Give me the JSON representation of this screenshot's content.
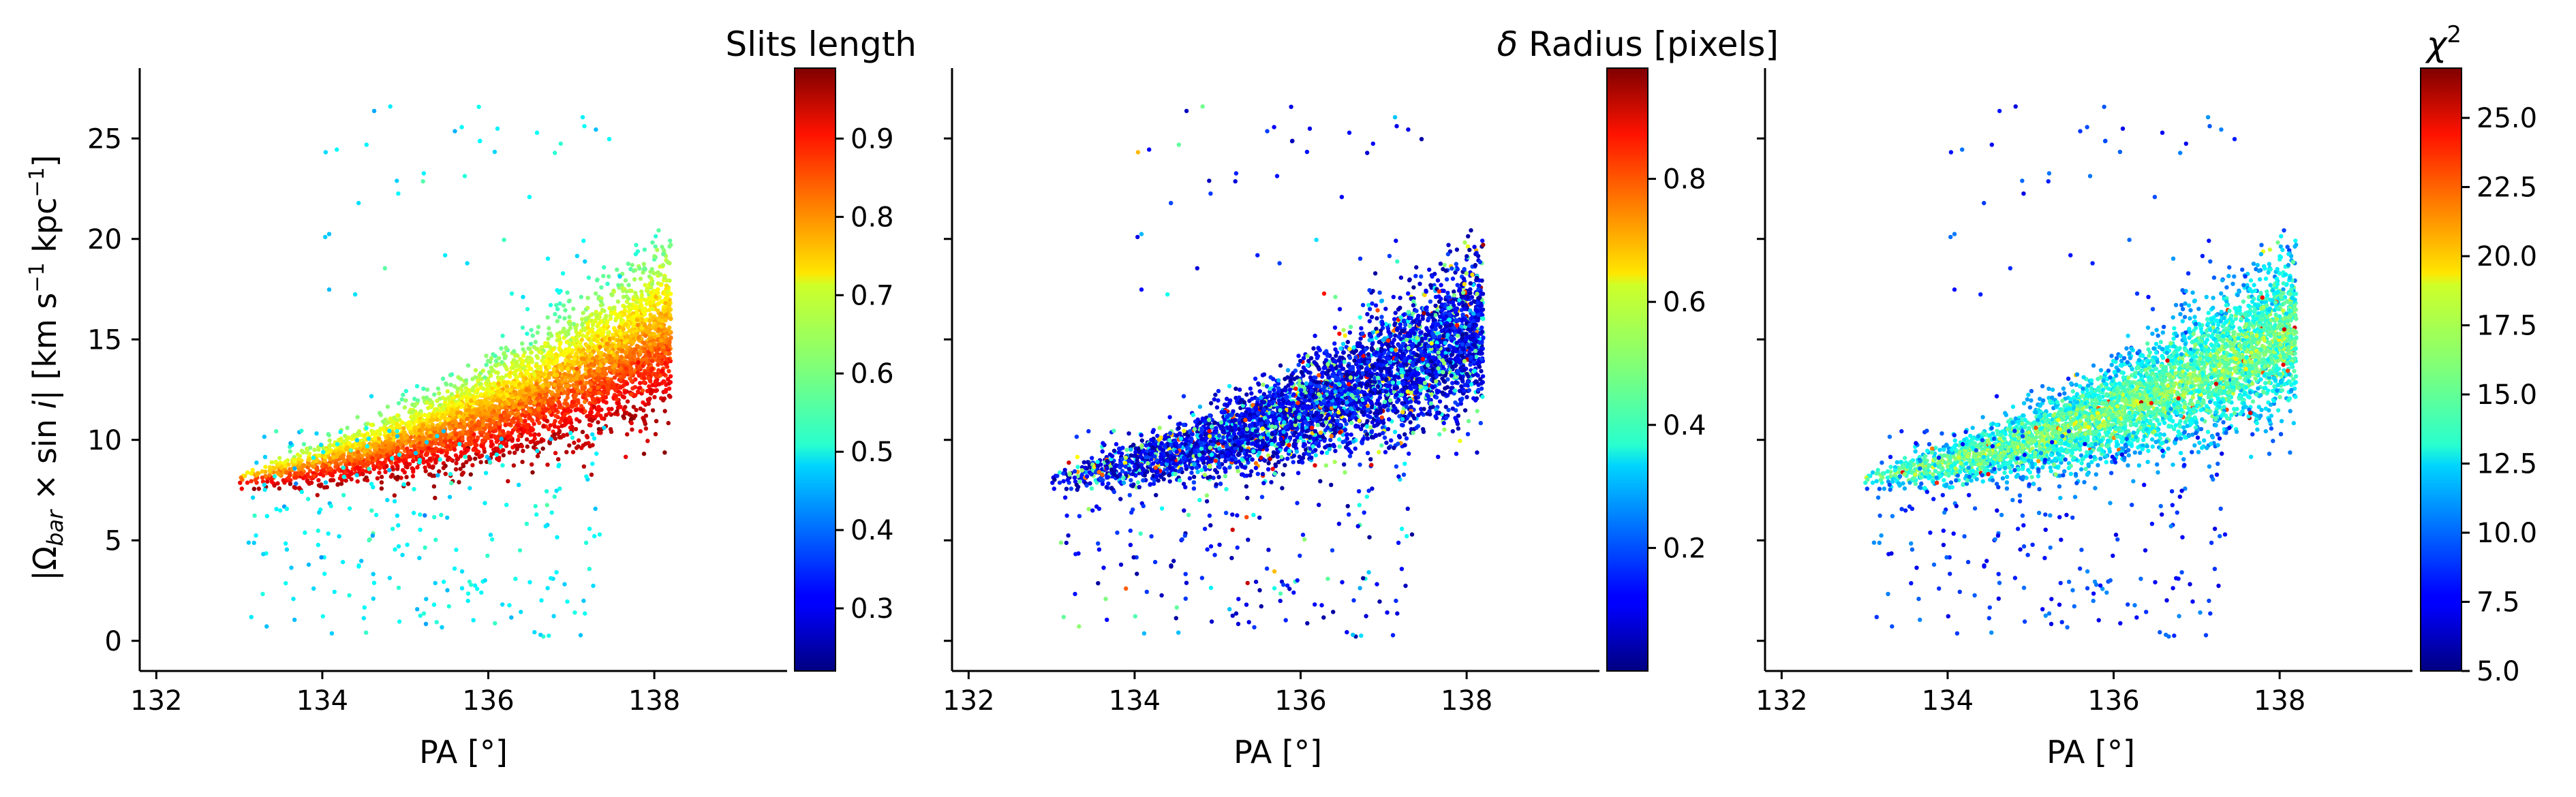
{
  "chart_data": [
    {
      "type": "scatter",
      "panel": 1,
      "xlabel": "PA [°]",
      "ylabel": "|Ω_bar × sin i|   [km s⁻¹ kpc⁻¹]",
      "ylabel_parts": {
        "a": "|Ω",
        "b": "bar",
        "c": " × sin ",
        "d": "i",
        "e": "|   [km s",
        "f": "−1",
        "g": " kpc",
        "h": "−1",
        "i": "]"
      },
      "xlim": [
        131.8,
        139.6
      ],
      "ylim": [
        -1.5,
        28.5
      ],
      "xticks": [
        {
          "v": 132,
          "label": "132"
        },
        {
          "v": 134,
          "label": "134"
        },
        {
          "v": 136,
          "label": "136"
        },
        {
          "v": 138,
          "label": "138"
        }
      ],
      "yticks": [
        {
          "v": 0,
          "label": "0"
        },
        {
          "v": 5,
          "label": "5"
        },
        {
          "v": 10,
          "label": "10"
        },
        {
          "v": 15,
          "label": "15"
        },
        {
          "v": 20,
          "label": "20"
        },
        {
          "v": 25,
          "label": "25"
        }
      ],
      "colorbar": {
        "title": "Slits length",
        "range": [
          0.22,
          0.99
        ],
        "cmap": "jet",
        "ticks": [
          {
            "v": 0.3,
            "label": "0.3"
          },
          {
            "v": 0.4,
            "label": "0.4"
          },
          {
            "v": 0.5,
            "label": "0.5"
          },
          {
            "v": 0.6,
            "label": "0.6"
          },
          {
            "v": 0.7,
            "label": "0.7"
          },
          {
            "v": 0.8,
            "label": "0.8"
          },
          {
            "v": 0.9,
            "label": "0.9"
          }
        ]
      },
      "colour_trend": "high values (dark red) along the lower edge of the band, decreasing to green/cyan toward the upper edge; sparse scattered points below the band are cyan (~0.5)",
      "approx_point_count": 5000
    },
    {
      "type": "scatter",
      "panel": 2,
      "xlabel": "PA [°]",
      "xlim": [
        131.8,
        139.6
      ],
      "ylim": [
        -1.5,
        28.5
      ],
      "xticks": [
        {
          "v": 132,
          "label": "132"
        },
        {
          "v": 134,
          "label": "134"
        },
        {
          "v": 136,
          "label": "136"
        },
        {
          "v": 138,
          "label": "138"
        }
      ],
      "colorbar": {
        "title": "δ Radius [pixels]",
        "title_parts": {
          "a": "δ",
          "b": " Radius [pixels]"
        },
        "range": [
          0.0,
          0.98
        ],
        "cmap": "jet",
        "ticks": [
          {
            "v": 0.2,
            "label": "0.2"
          },
          {
            "v": 0.4,
            "label": "0.4"
          },
          {
            "v": 0.6,
            "label": "0.6"
          },
          {
            "v": 0.8,
            "label": "0.8"
          }
        ]
      },
      "colour_trend": "mostly dark blue (~0.05–0.2) with scattered cyan/green and a few yellow/red points",
      "approx_point_count": 5000
    },
    {
      "type": "scatter",
      "panel": 3,
      "xlabel": "PA [°]",
      "xlim": [
        131.8,
        139.6
      ],
      "ylim": [
        -1.5,
        28.5
      ],
      "xticks": [
        {
          "v": 132,
          "label": "132"
        },
        {
          "v": 134,
          "label": "134"
        },
        {
          "v": 136,
          "label": "136"
        },
        {
          "v": 138,
          "label": "138"
        }
      ],
      "colorbar": {
        "title": "χ²",
        "title_parts": {
          "a": "χ",
          "b": "2"
        },
        "range": [
          5.0,
          26.8
        ],
        "cmap": "jet",
        "ticks": [
          {
            "v": 5.0,
            "label": "5.0"
          },
          {
            "v": 7.5,
            "label": "7.5"
          },
          {
            "v": 10.0,
            "label": "10.0"
          },
          {
            "v": 12.5,
            "label": "12.5"
          },
          {
            "v": 15.0,
            "label": "15.0"
          },
          {
            "v": 17.5,
            "label": "17.5"
          },
          {
            "v": 20.0,
            "label": "20.0"
          },
          {
            "v": 22.5,
            "label": "22.5"
          },
          {
            "v": 25.0,
            "label": "25.0"
          }
        ]
      },
      "colour_trend": "band core ~14–17 (cyan/green), edges ~10–12 (blue), low-ω scattered points ~7–10 (dark blue), a few red/yellow outliers at the top",
      "approx_point_count": 5000
    }
  ]
}
